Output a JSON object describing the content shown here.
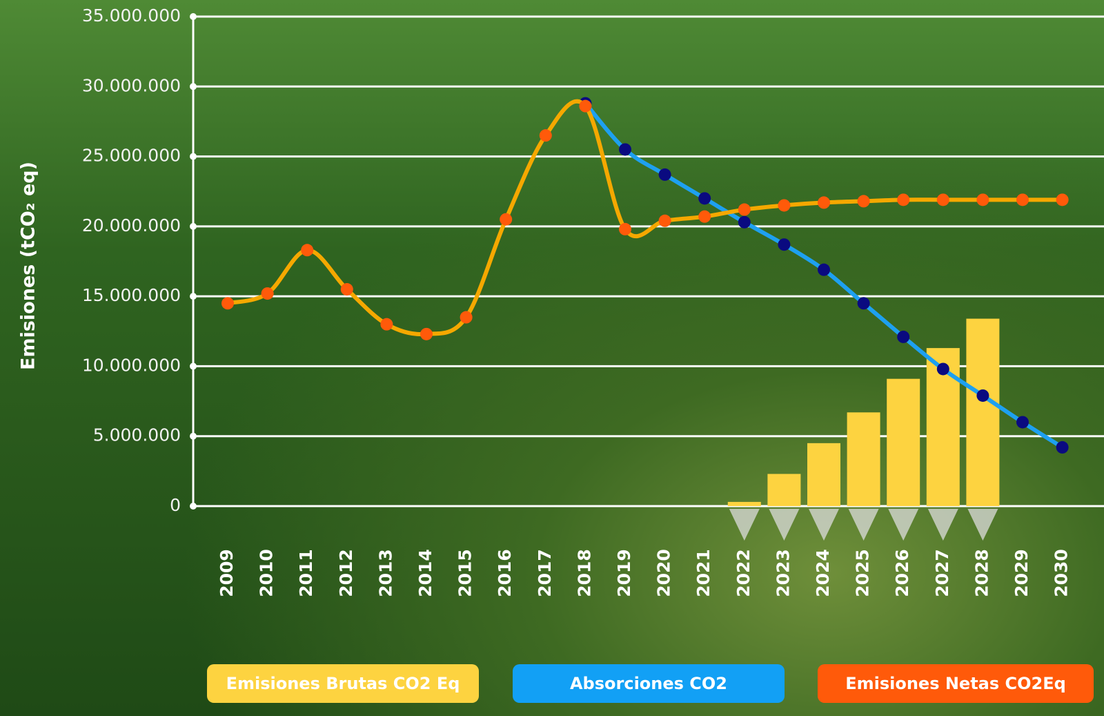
{
  "chart_data": {
    "type": "line",
    "ylabel": "Emisiones (tCO₂ eq)",
    "categories": [
      "2009",
      "2010",
      "2011",
      "2012",
      "2013",
      "2014",
      "2015",
      "2016",
      "2017",
      "2018",
      "2019",
      "2020",
      "2021",
      "2022",
      "2023",
      "2024",
      "2025",
      "2026",
      "2027",
      "2028",
      "2029",
      "2030"
    ],
    "ylim": [
      0,
      35000000
    ],
    "yticks": [
      0,
      {
        "value": 5000000,
        "label": "5.000.000"
      },
      {
        "value": 10000000,
        "label": "10.000.000"
      },
      {
        "value": 15000000,
        "label": "15.000.000"
      },
      {
        "value": 20000000,
        "label": "20.000.000"
      },
      {
        "value": 25000000,
        "label": "25.000.000"
      },
      {
        "value": 30000000,
        "label": "30.000.000"
      },
      {
        "value": 35000000,
        "label": "35.000.000"
      }
    ],
    "grid": true,
    "series": [
      {
        "name": "Emisiones Brutas CO2 Eq",
        "type": "bar",
        "color": "#fdd340",
        "values": [
          null,
          null,
          null,
          null,
          null,
          null,
          null,
          null,
          null,
          null,
          null,
          null,
          null,
          300000,
          2300000,
          4500000,
          6700000,
          9100000,
          11300000,
          13400000,
          null,
          null
        ]
      },
      {
        "name": "Absorciones CO2",
        "type": "line",
        "color": "#12a0f5",
        "line_color": "#1ea0f0",
        "marker_color": "#0a0a80",
        "values": [
          null,
          null,
          null,
          null,
          null,
          null,
          null,
          null,
          null,
          28800000,
          25500000,
          23700000,
          22000000,
          20300000,
          18700000,
          16900000,
          14500000,
          12100000,
          9800000,
          7900000,
          6000000,
          4200000
        ]
      },
      {
        "name": "Emisiones Netas CO2Eq",
        "type": "line",
        "color": "#ff5a0a",
        "line_color": "#f5a800",
        "marker_color": "#ff5a0a",
        "values": [
          14500000,
          15200000,
          18300000,
          15500000,
          13000000,
          12300000,
          13500000,
          20500000,
          26500000,
          28600000,
          19800000,
          20400000,
          20700000,
          21200000,
          21500000,
          21700000,
          21800000,
          21900000,
          21900000,
          21900000,
          21900000,
          21900000
        ]
      }
    ]
  }
}
